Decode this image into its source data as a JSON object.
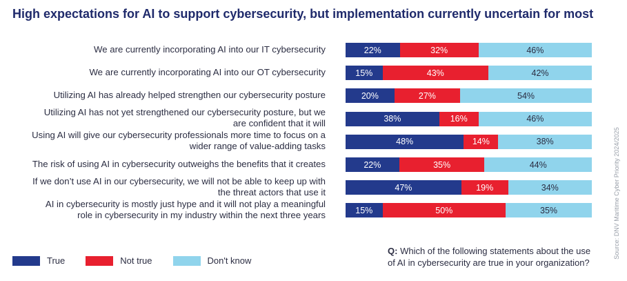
{
  "title": "High expectations for AI to support cybersecurity, but implementation currently uncertain for most",
  "question_prefix": "Q:",
  "question_line1": " Which of the following statements about the use",
  "question_line2": "of AI in cybersecurity are true in your organization?",
  "source": "Source: DNV Maritime Cyber Priority 2024/2025",
  "colors": {
    "true": "#233a8c",
    "not_true": "#e8202f",
    "dont_know": "#90d4ec"
  },
  "chart_data": {
    "type": "bar",
    "stacked": true,
    "orientation": "horizontal",
    "title": "High expectations for AI to support cybersecurity, but implementation currently uncertain for most",
    "categories": [
      [
        "We are currently incorporating AI into our IT cybersecurity"
      ],
      [
        "We are currently incorporating AI into our OT cybersecurity"
      ],
      [
        "Utilizing AI has already helped strengthen our cybersecurity posture"
      ],
      [
        "Utilizing AI has not yet strengthened our cybersecurity posture, but we",
        "are confident that it will"
      ],
      [
        "Using AI will give our cybersecurity professionals more time to focus on a",
        "wider range of value-adding tasks"
      ],
      [
        "The risk of using AI in cybersecurity outweighs the benefits that it creates"
      ],
      [
        "If we don’t use AI in our cybersecurity, we will not be able to keep up with",
        "the threat actors that use it"
      ],
      [
        "AI in cybersecurity is mostly just hype and it will not play a meaningful",
        "role in cybersecurity in my industry within the next three years"
      ]
    ],
    "series": [
      {
        "name": "True",
        "values": [
          22,
          15,
          20,
          38,
          48,
          22,
          47,
          15
        ]
      },
      {
        "name": "Not true",
        "values": [
          32,
          43,
          27,
          16,
          14,
          35,
          19,
          50
        ]
      },
      {
        "name": "Don't know",
        "values": [
          46,
          42,
          54,
          46,
          38,
          44,
          34,
          35
        ]
      }
    ],
    "value_suffix": "%",
    "legend_position": "bottom-left"
  }
}
